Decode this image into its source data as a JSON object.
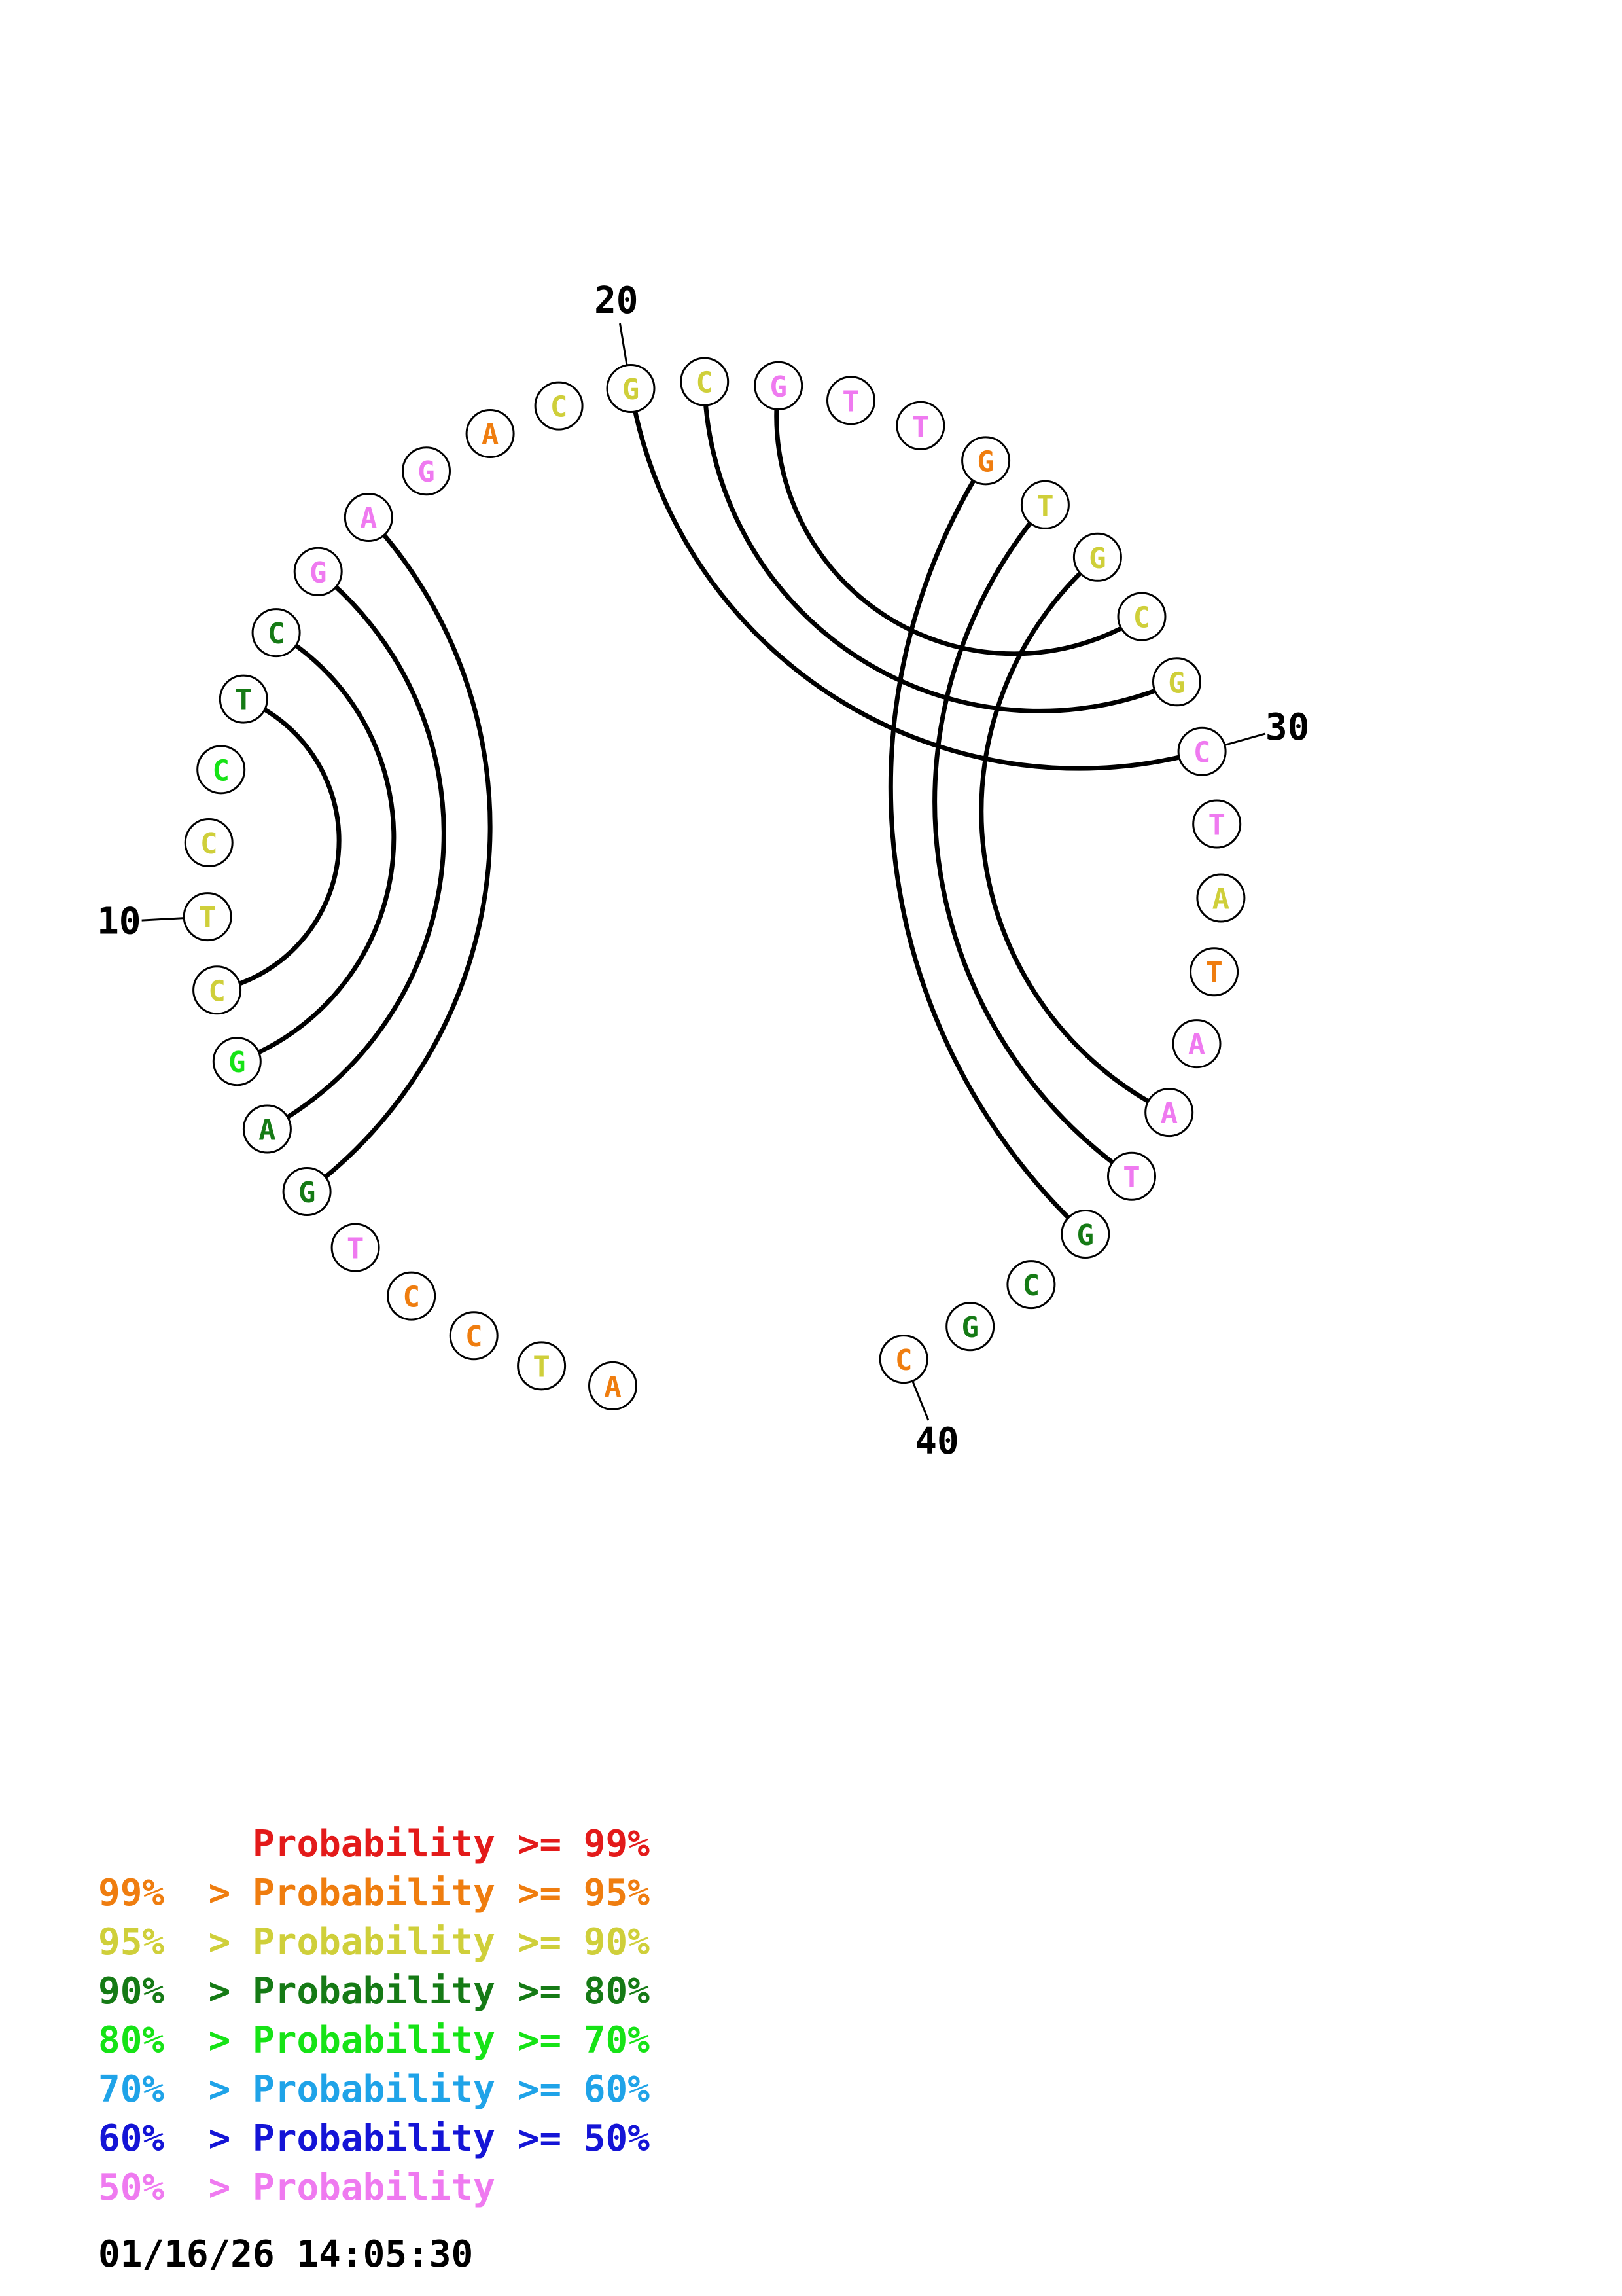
{
  "structure": {
    "sequence": [
      "A",
      "T",
      "C",
      "C",
      "T",
      "G",
      "A",
      "G",
      "C",
      "T",
      "C",
      "C",
      "T",
      "C",
      "G",
      "A",
      "G",
      "A",
      "C",
      "G",
      "C",
      "G",
      "T",
      "T",
      "G",
      "T",
      "G",
      "C",
      "G",
      "C",
      "T",
      "A",
      "T",
      "A",
      "A",
      "T",
      "G",
      "C",
      "G",
      "C"
    ],
    "nucleotide_probability_colors": [
      "#ef7d0f",
      "#cfcf3a",
      "#ef7d0f",
      "#ef7d0f",
      "#ef7af0",
      "#157a15",
      "#157a15",
      "#16e316",
      "#cfcf3a",
      "#cfcf3a",
      "#cfcf3a",
      "#16e316",
      "#157a15",
      "#157a15",
      "#ef7af0",
      "#ef7af0",
      "#ef7af0",
      "#ef7d0f",
      "#cfcf3a",
      "#cfcf3a",
      "#cfcf3a",
      "#ef7af0",
      "#ef7af0",
      "#ef7af0",
      "#ef7d0f",
      "#cfcf3a",
      "#cfcf3a",
      "#cfcf3a",
      "#cfcf3a",
      "#ef7af0",
      "#ef7af0",
      "#cfcf3a",
      "#ef7d0f",
      "#ef7af0",
      "#ef7af0",
      "#ef7af0",
      "#157a15",
      "#157a15",
      "#157a15",
      "#ef7d0f"
    ],
    "base_pairs": [
      [
        5,
        15
      ],
      [
        6,
        14
      ],
      [
        7,
        13
      ],
      [
        8,
        12
      ],
      [
        19,
        29
      ],
      [
        20,
        28
      ],
      [
        21,
        27
      ],
      [
        24,
        36
      ],
      [
        25,
        35
      ],
      [
        26,
        34
      ]
    ],
    "position_labels": [
      {
        "index": 10,
        "text": "10"
      },
      {
        "index": 20,
        "text": "20"
      },
      {
        "index": 30,
        "text": "30"
      },
      {
        "index": 40,
        "text": "40"
      }
    ]
  },
  "legend": [
    {
      "threshold_high": "",
      "operator_high": "",
      "label": "Probability",
      "operator_low": ">=",
      "threshold_low": "99%",
      "color": "#e31a1a"
    },
    {
      "threshold_high": "99%",
      "operator_high": ">",
      "label": "Probability",
      "operator_low": ">=",
      "threshold_low": "95%",
      "color": "#ef7d0f"
    },
    {
      "threshold_high": "95%",
      "operator_high": ">",
      "label": "Probability",
      "operator_low": ">=",
      "threshold_low": "90%",
      "color": "#cfcf3a"
    },
    {
      "threshold_high": "90%",
      "operator_high": ">",
      "label": "Probability",
      "operator_low": ">=",
      "threshold_low": "80%",
      "color": "#157a15"
    },
    {
      "threshold_high": "80%",
      "operator_high": ">",
      "label": "Probability",
      "operator_low": ">=",
      "threshold_low": "70%",
      "color": "#16e316"
    },
    {
      "threshold_high": "70%",
      "operator_high": ">",
      "label": "Probability",
      "operator_low": ">=",
      "threshold_low": "60%",
      "color": "#1fa3e8"
    },
    {
      "threshold_high": "60%",
      "operator_high": ">",
      "label": "Probability",
      "operator_low": ">=",
      "threshold_low": "50%",
      "color": "#1414d6"
    },
    {
      "threshold_high": "50%",
      "operator_high": ">",
      "label": "Probability",
      "operator_low": "",
      "threshold_low": "",
      "color": "#ef7af0"
    }
  ],
  "timestamp": "01/16/26 14:05:30"
}
